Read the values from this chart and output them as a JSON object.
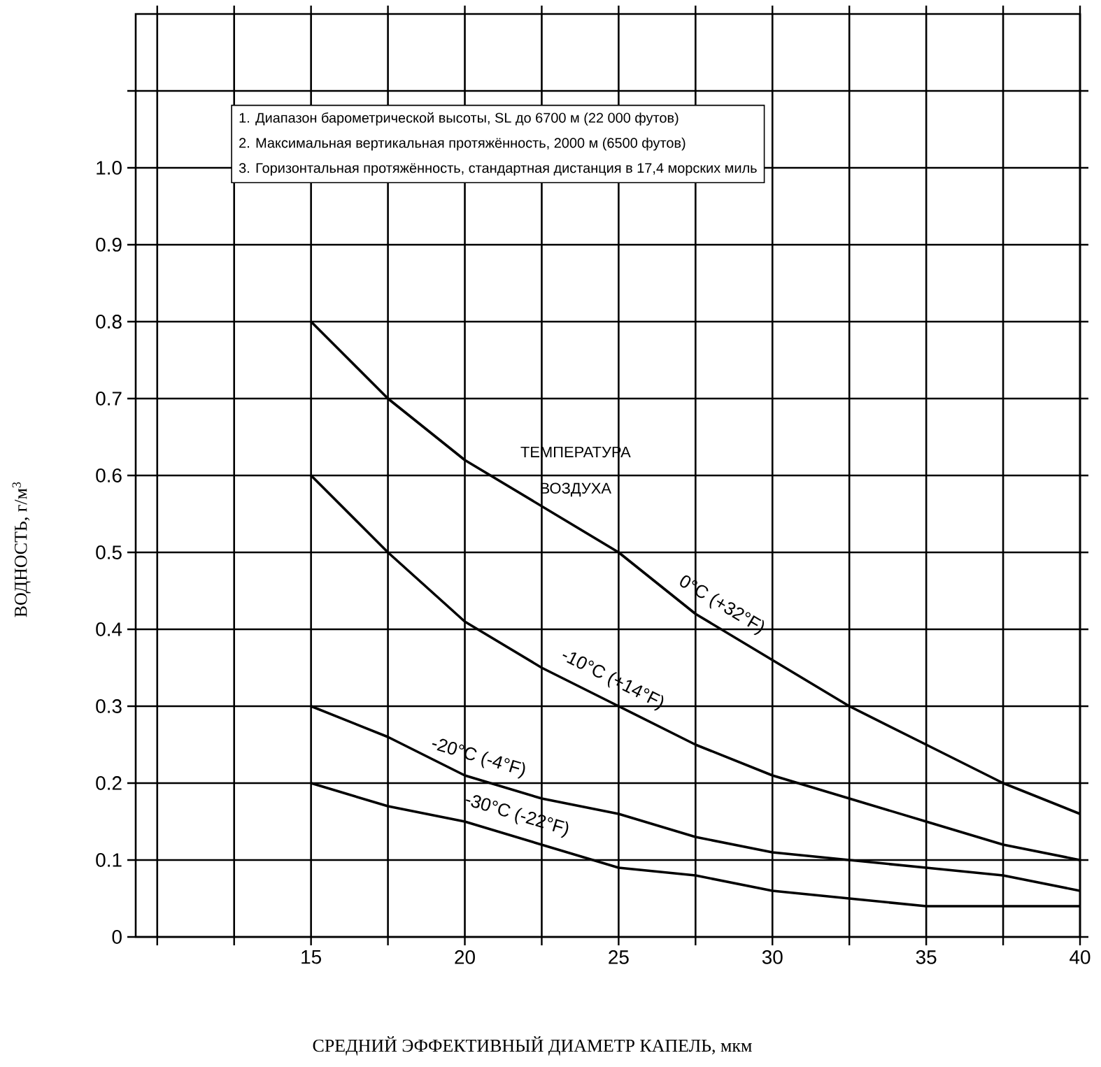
{
  "chart_data": {
    "type": "line",
    "xlabel": "СРЕДНИЙ ЭФФЕКТИВНЫЙ ДИАМЕТР КАПЕЛЬ, мкм",
    "ylabel": "ВОДНОСТЬ, г/м$^{3}$",
    "x": [
      15,
      17.5,
      20,
      22.5,
      25,
      27.5,
      30,
      32.5,
      35,
      37.5,
      40
    ],
    "series": [
      {
        "name": "0°C (+32°F)",
        "color": "#000000",
        "values": [
          0.8,
          0.7,
          0.62,
          0.56,
          0.5,
          0.42,
          0.36,
          0.3,
          0.25,
          0.2,
          0.16
        ]
      },
      {
        "name": "-10°C (+14°F)",
        "color": "#000000",
        "values": [
          0.6,
          0.5,
          0.41,
          0.35,
          0.3,
          0.25,
          0.21,
          0.18,
          0.15,
          0.12,
          0.1
        ]
      },
      {
        "name": "-20°C (-4°F)",
        "color": "#000000",
        "values": [
          0.3,
          0.26,
          0.21,
          0.18,
          0.16,
          0.13,
          0.11,
          0.1,
          0.09,
          0.08,
          0.06
        ]
      },
      {
        "name": "-30°C (-22°F)",
        "color": "#000000",
        "values": [
          0.2,
          0.17,
          0.15,
          0.12,
          0.09,
          0.08,
          0.06,
          0.05,
          0.04,
          0.04,
          0.04
        ]
      }
    ],
    "xlim": [
      9.3,
      40
    ],
    "ylim": [
      0,
      1.2
    ],
    "xticks": [
      {
        "value": 10,
        "label": null
      },
      {
        "value": 12.5,
        "label": null
      },
      15,
      {
        "value": 17.5,
        "label": null
      },
      20,
      {
        "value": 22.5,
        "label": null
      },
      25,
      {
        "value": 27.5,
        "label": null
      },
      30,
      {
        "value": 32.5,
        "label": null
      },
      35,
      {
        "value": 37.5,
        "label": null
      },
      40
    ],
    "yticks": [
      0,
      0.1,
      0.2,
      0.3,
      0.4,
      0.5,
      0.6,
      0.7,
      0.8,
      0.9,
      {
        "value": 1,
        "label": "1.0"
      },
      {
        "value": 1.1,
        "label": null
      }
    ],
    "grid": true,
    "marker": "none",
    "line_style": "solid",
    "annotations": [
      "1. Диапазон барометрической высоты, SL до 6700 м (22 000 футов)",
      "2. Максимальная вертикальная протяжённость, 2000 м (6500 футов)",
      "3. Горизонтальная протяжённость, стандартная дистанция в 17,4 морских миль",
      "ТЕМПЕРАТУРА ВОЗДУХА"
    ]
  }
}
